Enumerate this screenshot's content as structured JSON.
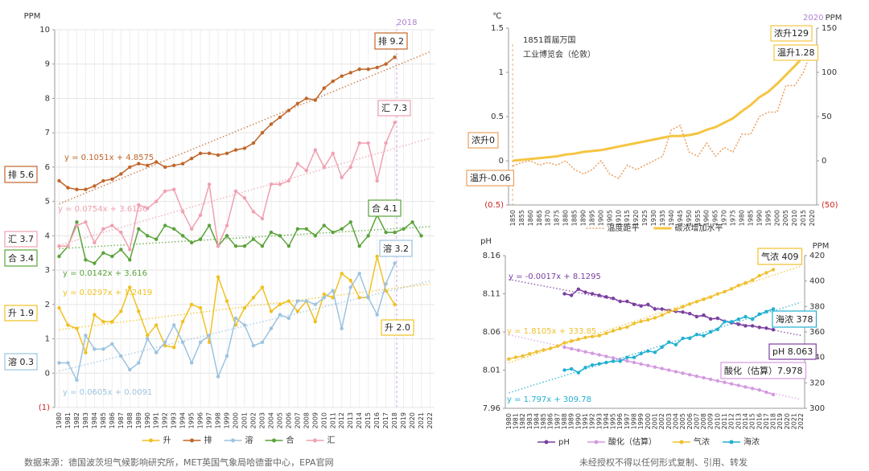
{
  "chart_data": [
    {
      "type": "line",
      "y_label": "PPM",
      "ylim": [
        -1,
        10
      ],
      "yticks": [
        {
          "value": -1,
          "label": "(1)"
        },
        0,
        1,
        2,
        3,
        4,
        5,
        6,
        7,
        8,
        9,
        10
      ],
      "grid": true,
      "markers": true,
      "trendline": true,
      "categories": [
        1980,
        1981,
        1982,
        1983,
        1984,
        1985,
        1986,
        1987,
        1988,
        1989,
        1990,
        1991,
        1992,
        1993,
        1994,
        1995,
        1996,
        1997,
        1998,
        1999,
        2000,
        2001,
        2002,
        2003,
        2004,
        2005,
        2006,
        2007,
        2008,
        2009,
        2010,
        2011,
        2012,
        2013,
        2014,
        2015,
        2016,
        2017,
        2018,
        2019,
        2020,
        2021,
        2022
      ],
      "series": [
        {
          "name": "升",
          "color": "#f0c020",
          "values": [
            1.9,
            1.4,
            1.3,
            0.6,
            1.7,
            1.5,
            1.5,
            1.8,
            2.5,
            1.8,
            1.1,
            1.4,
            0.8,
            0.75,
            1.5,
            2.0,
            1.9,
            0.9,
            2.8,
            2.1,
            1.4,
            1.9,
            2.2,
            2.5,
            1.8,
            2.0,
            2.1,
            1.8,
            2.1,
            1.5,
            2.3,
            2.2,
            2.9,
            2.7,
            2.2,
            2.2,
            3.4,
            2.4,
            2.0,
            null,
            null,
            null,
            null
          ]
        },
        {
          "name": "排",
          "color": "#c0662a",
          "values": [
            5.6,
            5.4,
            5.35,
            5.35,
            5.45,
            5.6,
            5.65,
            5.8,
            6.0,
            6.1,
            6.05,
            6.15,
            6.0,
            6.05,
            6.1,
            6.25,
            6.4,
            6.4,
            6.35,
            6.4,
            6.5,
            6.55,
            6.7,
            7.0,
            7.25,
            7.45,
            7.65,
            7.85,
            8.0,
            7.95,
            8.3,
            8.5,
            8.65,
            8.75,
            8.85,
            8.85,
            8.9,
            9.0,
            9.2,
            null,
            null,
            null,
            null
          ]
        },
        {
          "name": "溶",
          "color": "#9cc3e0",
          "values": [
            0.3,
            0.3,
            -0.2,
            1.1,
            0.7,
            0.7,
            0.85,
            0.5,
            0.1,
            0.3,
            1.0,
            0.6,
            0.9,
            1.4,
            0.9,
            0.3,
            0.9,
            1.1,
            -0.1,
            0.5,
            1.6,
            1.4,
            0.8,
            0.9,
            1.3,
            1.7,
            1.6,
            2.1,
            2.1,
            2.0,
            2.2,
            2.4,
            1.3,
            2.5,
            2.9,
            2.2,
            1.7,
            2.6,
            3.2,
            null,
            null,
            null,
            null
          ]
        },
        {
          "name": "合",
          "color": "#5aa33a",
          "values": [
            3.4,
            3.7,
            4.4,
            3.3,
            3.2,
            3.5,
            3.4,
            3.6,
            3.3,
            4.2,
            4.0,
            3.9,
            4.3,
            4.2,
            4.0,
            3.8,
            3.9,
            4.3,
            3.7,
            4.0,
            3.7,
            3.7,
            3.9,
            3.7,
            4.1,
            4.0,
            3.7,
            4.2,
            4.2,
            4.0,
            4.3,
            4.1,
            4.2,
            4.4,
            3.7,
            4.0,
            4.6,
            4.1,
            4.1,
            4.2,
            4.4,
            4.0,
            null
          ]
        },
        {
          "name": "汇",
          "color": "#f0a0b0",
          "values": [
            3.7,
            3.7,
            4.3,
            4.4,
            3.8,
            4.2,
            4.3,
            4.1,
            3.6,
            4.9,
            4.8,
            5.0,
            5.3,
            5.35,
            4.7,
            4.2,
            4.6,
            5.5,
            3.7,
            4.3,
            5.3,
            5.1,
            4.7,
            4.5,
            5.5,
            5.5,
            5.6,
            6.1,
            5.9,
            6.5,
            6.0,
            6.4,
            5.7,
            6.0,
            6.7,
            6.7,
            5.6,
            6.7,
            7.3,
            null,
            null,
            null,
            null
          ]
        }
      ],
      "annotations": [
        "2018",
        "排 9.2",
        "汇 7.3",
        "合 4.1",
        "溶 3.2",
        "升 2.0",
        "排 5.6",
        "汇 3.7",
        "合 3.4",
        "升 1.9",
        "溶 0.3",
        "y = 0.1051x + 4.8575",
        "y = 0.0754x + 3.6156",
        "y = 0.0142x + 3.616",
        "y = 0.0297x + 1.2419",
        "y = 0.0605x + 0.0091"
      ]
    },
    {
      "type": "line",
      "y_label": "℃",
      "y2_label": "PPM",
      "ylim": [
        -0.5,
        1.5
      ],
      "yticks": [
        {
          "value": -0.5,
          "label": "(0.5)"
        },
        0,
        0.5,
        1,
        1.5
      ],
      "y2lim": [
        -50,
        150
      ],
      "y2ticks": [
        {
          "value": -50,
          "label": "(50)"
        },
        0,
        50,
        100,
        150
      ],
      "grid": false,
      "markers": false,
      "trendline": false,
      "categories": [
        1850,
        1855,
        1860,
        1865,
        1870,
        1875,
        1880,
        1885,
        1890,
        1895,
        1900,
        1905,
        1910,
        1915,
        1920,
        1925,
        1930,
        1935,
        1940,
        1945,
        1950,
        1955,
        1960,
        1965,
        1970,
        1975,
        1980,
        1985,
        1990,
        1995,
        2000,
        2005,
        2010,
        2015,
        2020
      ],
      "series": [
        {
          "name": "温度距平",
          "color": "#e8a060",
          "style": "dotted",
          "values": [
            -0.06,
            -0.02,
            0.0,
            -0.05,
            -0.02,
            -0.05,
            0.0,
            -0.1,
            -0.15,
            -0.1,
            0.0,
            -0.15,
            -0.2,
            -0.05,
            -0.1,
            -0.05,
            0.0,
            0.05,
            0.35,
            0.4,
            0.1,
            0.05,
            0.2,
            0.05,
            0.15,
            0.1,
            0.3,
            0.3,
            0.5,
            0.55,
            0.55,
            0.85,
            0.85,
            1.0,
            1.28
          ]
        },
        {
          "name": "碳浓增加水平",
          "color": "#f5c542",
          "axis": "y2",
          "values": [
            0,
            1,
            2,
            3,
            4,
            5,
            7,
            8,
            10,
            11,
            12,
            14,
            16,
            18,
            20,
            22,
            24,
            26,
            28,
            28,
            29,
            31,
            35,
            38,
            43,
            48,
            56,
            63,
            72,
            78,
            87,
            97,
            107,
            118,
            129
          ]
        }
      ],
      "annotations": [
        "2020",
        "1851首届万国",
        "工业博览会（伦敦）",
        "浓升0",
        "温升-0.06",
        "浓升129",
        "温升1.28"
      ]
    },
    {
      "type": "line",
      "y_label": "pH",
      "y2_label": "PPM",
      "ylim": [
        7.96,
        8.16
      ],
      "yticks": [
        7.96,
        8.01,
        8.06,
        8.11,
        8.16
      ],
      "y2lim": [
        300,
        420
      ],
      "y2ticks": [
        300,
        320,
        340,
        360,
        380,
        400,
        420
      ],
      "grid": false,
      "markers": true,
      "trendline": true,
      "categories": [
        1980,
        1981,
        1982,
        1983,
        1984,
        1985,
        1986,
        1987,
        1988,
        1989,
        1990,
        1991,
        1992,
        1993,
        1994,
        1995,
        1996,
        1997,
        1998,
        1999,
        2000,
        2001,
        2002,
        2003,
        2004,
        2005,
        2006,
        2007,
        2008,
        2009,
        2010,
        2011,
        2012,
        2013,
        2014,
        2015,
        2016,
        2017,
        2018,
        2019,
        2020,
        2021,
        2022
      ],
      "series": [
        {
          "name": "pH",
          "color": "#7a3fa0",
          "values": [
            null,
            null,
            null,
            null,
            null,
            null,
            null,
            null,
            8.11,
            8.108,
            8.116,
            8.112,
            8.11,
            8.108,
            8.106,
            8.104,
            8.1,
            8.1,
            8.096,
            8.094,
            8.096,
            8.09,
            8.09,
            8.088,
            8.087,
            8.086,
            8.084,
            8.08,
            8.082,
            8.077,
            8.078,
            8.074,
            8.072,
            8.07,
            8.068,
            8.068,
            8.066,
            8.065,
            8.063,
            null,
            null,
            null,
            null
          ]
        },
        {
          "name": "酸化（估算）",
          "color": "#d49ae0",
          "values": [
            null,
            null,
            null,
            null,
            null,
            null,
            null,
            null,
            8.04,
            8.038,
            8.036,
            8.034,
            8.032,
            8.03,
            8.028,
            8.026,
            8.024,
            8.022,
            8.02,
            8.018,
            8.016,
            8.014,
            8.012,
            8.01,
            8.008,
            8.006,
            8.004,
            8.002,
            8.0,
            7.998,
            7.996,
            7.994,
            7.992,
            7.99,
            7.988,
            7.986,
            7.984,
            7.981,
            7.978,
            null,
            null,
            null,
            null
          ]
        },
        {
          "name": "气浓",
          "color": "#f0c030",
          "axis": "y2",
          "values": [
            338.7,
            340.1,
            341.1,
            342.8,
            344.4,
            345.9,
            347.2,
            348.9,
            351.5,
            352.9,
            354.2,
            355.6,
            356.4,
            357.1,
            358.9,
            360.9,
            362.6,
            363.8,
            366.6,
            368.3,
            369.5,
            371.1,
            373.2,
            375.8,
            377.5,
            379.8,
            381.9,
            383.8,
            385.6,
            387.4,
            389.9,
            391.6,
            393.9,
            396.5,
            398.6,
            400.8,
            404.2,
            406.5,
            409,
            null,
            null,
            null,
            null
          ]
        },
        {
          "name": "海浓",
          "color": "#20b0d0",
          "axis": "y2",
          "values": [
            null,
            null,
            null,
            null,
            null,
            null,
            null,
            null,
            330,
            331,
            328,
            332,
            334,
            335,
            336,
            337,
            337,
            340,
            340,
            343,
            345,
            344,
            348,
            352,
            350,
            355,
            355,
            358,
            357,
            360,
            362,
            368,
            368,
            370,
            372,
            370,
            374,
            376,
            378,
            null,
            null,
            null,
            null
          ]
        }
      ],
      "annotations": [
        "y = -0.0017x + 8.1295",
        "y = 1.8105x + 333.85",
        "y = 1.797x + 309.78",
        "气浓 409",
        "海浓 378",
        "pH 8.063",
        "酸化（估算）7.978"
      ]
    }
  ],
  "footer": {
    "source": "数据来源：德国波茨坦气候影响研究所，MET英国气象局哈德雷中心，EPA官网",
    "notice": "未经授权不得以任何形式复制、引用、转发"
  }
}
